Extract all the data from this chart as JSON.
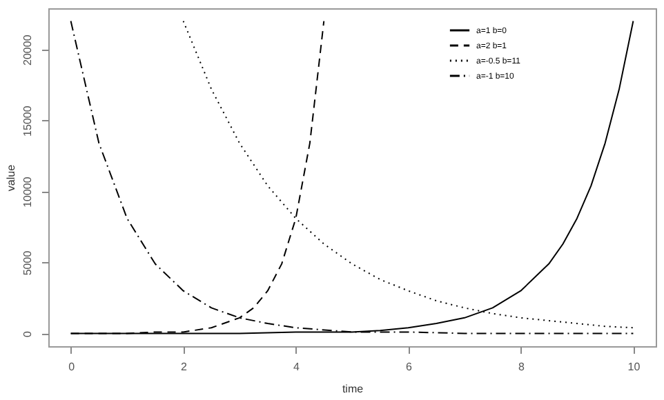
{
  "chart_data": {
    "type": "line",
    "xlabel": "time",
    "ylabel": "value",
    "xlim": [
      -0.4,
      10.4
    ],
    "ylim": [
      -900,
      22900
    ],
    "xticks": [
      0,
      2,
      4,
      6,
      8,
      10
    ],
    "yticks": [
      0,
      5000,
      10000,
      15000,
      20000
    ],
    "grid": false,
    "legend": "top right",
    "series": [
      {
        "name": "a=1 b=0",
        "color": "#000000",
        "line_style": "solid",
        "x": [
          0,
          1,
          2,
          3,
          4,
          4.5,
          5,
          5.5,
          6,
          6.5,
          7,
          7.5,
          8,
          8.5,
          8.75,
          9,
          9.25,
          9.5,
          9.75,
          10
        ],
        "values": [
          0,
          0,
          0,
          0,
          100,
          100,
          100,
          200,
          400,
          700,
          1100,
          1800,
          3000,
          4900,
          6300,
          8100,
          10400,
          13400,
          17200,
          22000
        ]
      },
      {
        "name": "a=2 b=1",
        "color": "#000000",
        "line_style": "dashed",
        "x": [
          0,
          1,
          1.5,
          2,
          2.5,
          3,
          3.25,
          3.5,
          3.75,
          4,
          4.25,
          4.5
        ],
        "values": [
          0,
          0,
          100,
          100,
          400,
          1100,
          1800,
          3000,
          4900,
          8100,
          13400,
          22000
        ]
      },
      {
        "name": "a=-0.5 b=11",
        "color": "#000000",
        "line_style": "dotted",
        "x": [
          2,
          2.5,
          3,
          3.5,
          4,
          4.5,
          5,
          5.5,
          6,
          6.5,
          7,
          7.5,
          8,
          8.5,
          9,
          9.5,
          10
        ],
        "values": [
          22000,
          17200,
          13400,
          10400,
          8100,
          6300,
          4900,
          3800,
          3000,
          2300,
          1800,
          1400,
          1100,
          900,
          700,
          500,
          400
        ]
      },
      {
        "name": "a=-1 b=10",
        "color": "#000000",
        "line_style": "dashdot",
        "x": [
          0,
          0.5,
          1,
          1.5,
          2,
          2.5,
          3,
          3.5,
          4,
          5,
          6,
          7,
          8,
          9,
          10
        ],
        "values": [
          22000,
          13400,
          8100,
          4900,
          3000,
          1800,
          1100,
          700,
          400,
          100,
          100,
          0,
          0,
          0,
          0
        ]
      }
    ]
  }
}
